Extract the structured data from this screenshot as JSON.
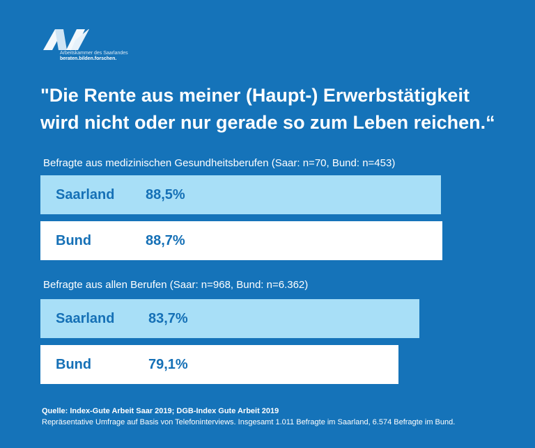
{
  "logo": {
    "subtitle": "Arbeitskammer des Saarlandes",
    "tagline": "beraten.bilden.forschen.",
    "icon": "ak-logo-icon"
  },
  "headline": {
    "line1": "\"Die Rente aus meiner (Haupt-) Erwerbstätigkeit",
    "line2": "wird nicht oder nur gerade so zum Leben reichen.“"
  },
  "colors": {
    "background": "#1573b9",
    "saarland_bar": "#a8dff7",
    "bund_bar": "#ffffff",
    "bar_text": "#1570b6"
  },
  "chart_data": {
    "type": "bar",
    "orientation": "horizontal",
    "title": "\"Die Rente aus meiner (Haupt-) Erwerbstätigkeit wird nicht oder nur gerade so zum Leben reichen.“",
    "xlim": [
      0,
      100
    ],
    "groups": [
      {
        "label": "Befragte aus medizinischen Gesundheitsberufen (Saar: n=70, Bund: n=453)",
        "bars": [
          {
            "name": "Saarland",
            "value": 88.5,
            "value_label": "88,5%"
          },
          {
            "name": "Bund",
            "value": 88.7,
            "value_label": "88,7%"
          }
        ]
      },
      {
        "label": "Befragte aus allen Berufen (Saar: n=968, Bund: n=6.362)",
        "bars": [
          {
            "name": "Saarland",
            "value": 83.7,
            "value_label": "83,7%"
          },
          {
            "name": "Bund",
            "value": 79.1,
            "value_label": "79,1%"
          }
        ]
      }
    ]
  },
  "footer": {
    "source": "Quelle: Index-Gute Arbeit Saar 2019; DGB-Index Gute Arbeit 2019",
    "note": "Repräsentative Umfrage auf Basis von Telefoninterviews. Insgesamt 1.011 Befragte im Saarland, 6.574 Befragte im Bund."
  }
}
